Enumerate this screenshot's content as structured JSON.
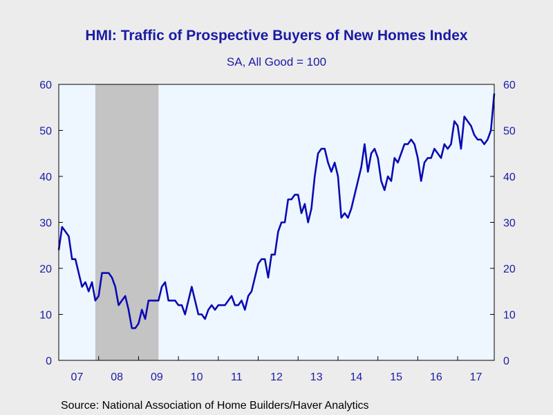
{
  "chart_data": {
    "type": "line",
    "title": "HMI: Traffic of Prospective Buyers of New Homes Index",
    "subtitle": "SA, All Good = 100",
    "source": "Source:  National Association of Home Builders/Haver Analytics",
    "x_start": "2007-01",
    "frequency": "monthly",
    "x_tick_labels": [
      "07",
      "08",
      "09",
      "10",
      "11",
      "12",
      "13",
      "14",
      "15",
      "16",
      "17"
    ],
    "y_ticks": [
      0,
      10,
      20,
      30,
      40,
      50,
      60
    ],
    "ylim": [
      0,
      60
    ],
    "y_axis_left": true,
    "y_axis_right": true,
    "recession_shading": {
      "start": "2007-12",
      "end": "2009-06",
      "color": "#c4c4c4"
    },
    "plot_background": "#eef6ff",
    "line_color": "#0a0ab4",
    "axis_color": "#1a1aa6",
    "series": [
      {
        "values": [
          24,
          29,
          28,
          27,
          22,
          22,
          19,
          16,
          17,
          15,
          17,
          13,
          14,
          19,
          19,
          19,
          18,
          16,
          12,
          13,
          14,
          11,
          7,
          7,
          8,
          11,
          9,
          13,
          13,
          13,
          13,
          16,
          17,
          13,
          13,
          13,
          12,
          12,
          10,
          13,
          16,
          13,
          10,
          10,
          9,
          11,
          12,
          11,
          12,
          12,
          12,
          13,
          14,
          12,
          12,
          13,
          11,
          14,
          15,
          18,
          21,
          22,
          22,
          18,
          23,
          23,
          28,
          30,
          30,
          35,
          35,
          36,
          36,
          32,
          34,
          30,
          33,
          40,
          45,
          46,
          46,
          43,
          41,
          43,
          40,
          31,
          32,
          31,
          33,
          36,
          39,
          42,
          47,
          41,
          45,
          46,
          44,
          39,
          37,
          40,
          39,
          44,
          43,
          45,
          47,
          47,
          48,
          47,
          44,
          39,
          43,
          44,
          44,
          46,
          45,
          44,
          47,
          46,
          47,
          52,
          51,
          46,
          53,
          52,
          51,
          49,
          48,
          48,
          47,
          48,
          50,
          58
        ]
      }
    ]
  }
}
